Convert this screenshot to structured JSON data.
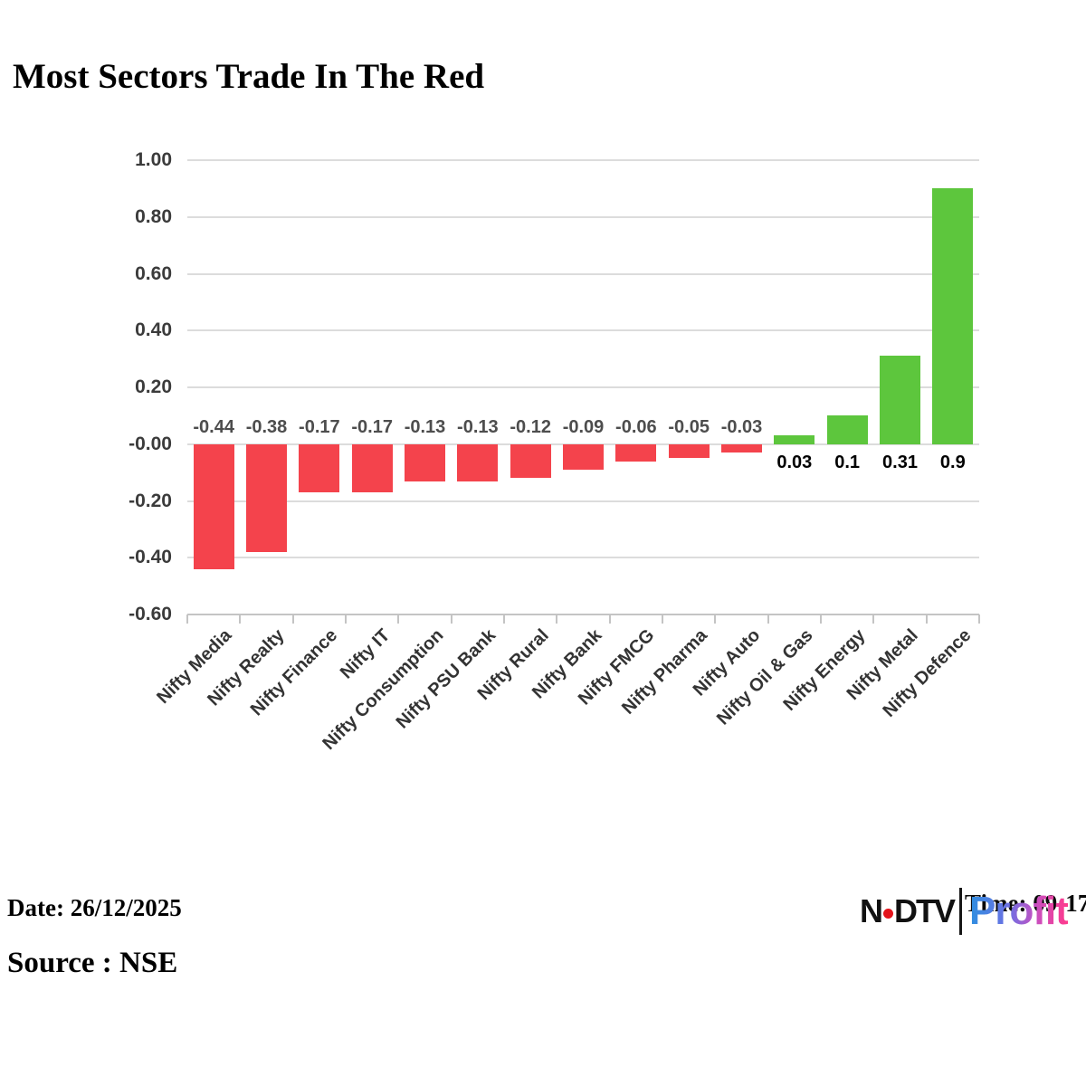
{
  "title": "Most Sectors Trade In The Red",
  "footer": {
    "date": "Date: 26/12/2025",
    "source": "Source : NSE",
    "time": "Time: 09:17"
  },
  "logo": {
    "ndtv_left": "N",
    "ndtv_right": "DTV",
    "profit": "Profit",
    "dot_color": "#e3131b",
    "profit_gradient_start": "#2e8fe0",
    "profit_gradient_end": "#ff3a8c"
  },
  "chart_data": {
    "type": "bar",
    "title": "Most Sectors Trade In The Red",
    "categories": [
      "Nifty Media",
      "Nifty Realty",
      "Nifty Finance",
      "Nifty IT",
      "Nifty Consumption",
      "Nifty PSU Bank",
      "Nifty Rural",
      "Nifty Bank",
      "Nifty FMCG",
      "Nifty Pharma",
      "Nifty Auto",
      "Nifty Oil & Gas",
      "Nifty Energy",
      "Nifty Metal",
      "Nifty Defence"
    ],
    "values": [
      -0.44,
      -0.38,
      -0.17,
      -0.17,
      -0.13,
      -0.13,
      -0.12,
      -0.09,
      -0.06,
      -0.05,
      -0.03,
      0.03,
      0.1,
      0.31,
      0.9
    ],
    "value_labels": [
      "-0.44",
      "-0.38",
      "-0.17",
      "-0.17",
      "-0.13",
      "-0.13",
      "-0.12",
      "-0.09",
      "-0.06",
      "-0.05",
      "-0.03",
      "0.03",
      "0.1",
      "0.31",
      "0.9"
    ],
    "y_ticks": [
      "1.00",
      "0.80",
      "0.60",
      "0.40",
      "0.20",
      "-0.00",
      "-0.20",
      "-0.40",
      "-0.60"
    ],
    "ylim": [
      -0.6,
      1.0
    ],
    "xlabel": "",
    "ylabel": "",
    "grid": true,
    "legend": false,
    "colors": {
      "positive_bar": "#5dc63d",
      "negative_bar": "#f4434c",
      "positive_label": "#000000",
      "negative_label": "#4d4d4d",
      "gridline": "#dcdcdc",
      "axis": "#c4c4c4",
      "y_tick_label": "#3b3b3b",
      "category_label": "#333333"
    }
  }
}
